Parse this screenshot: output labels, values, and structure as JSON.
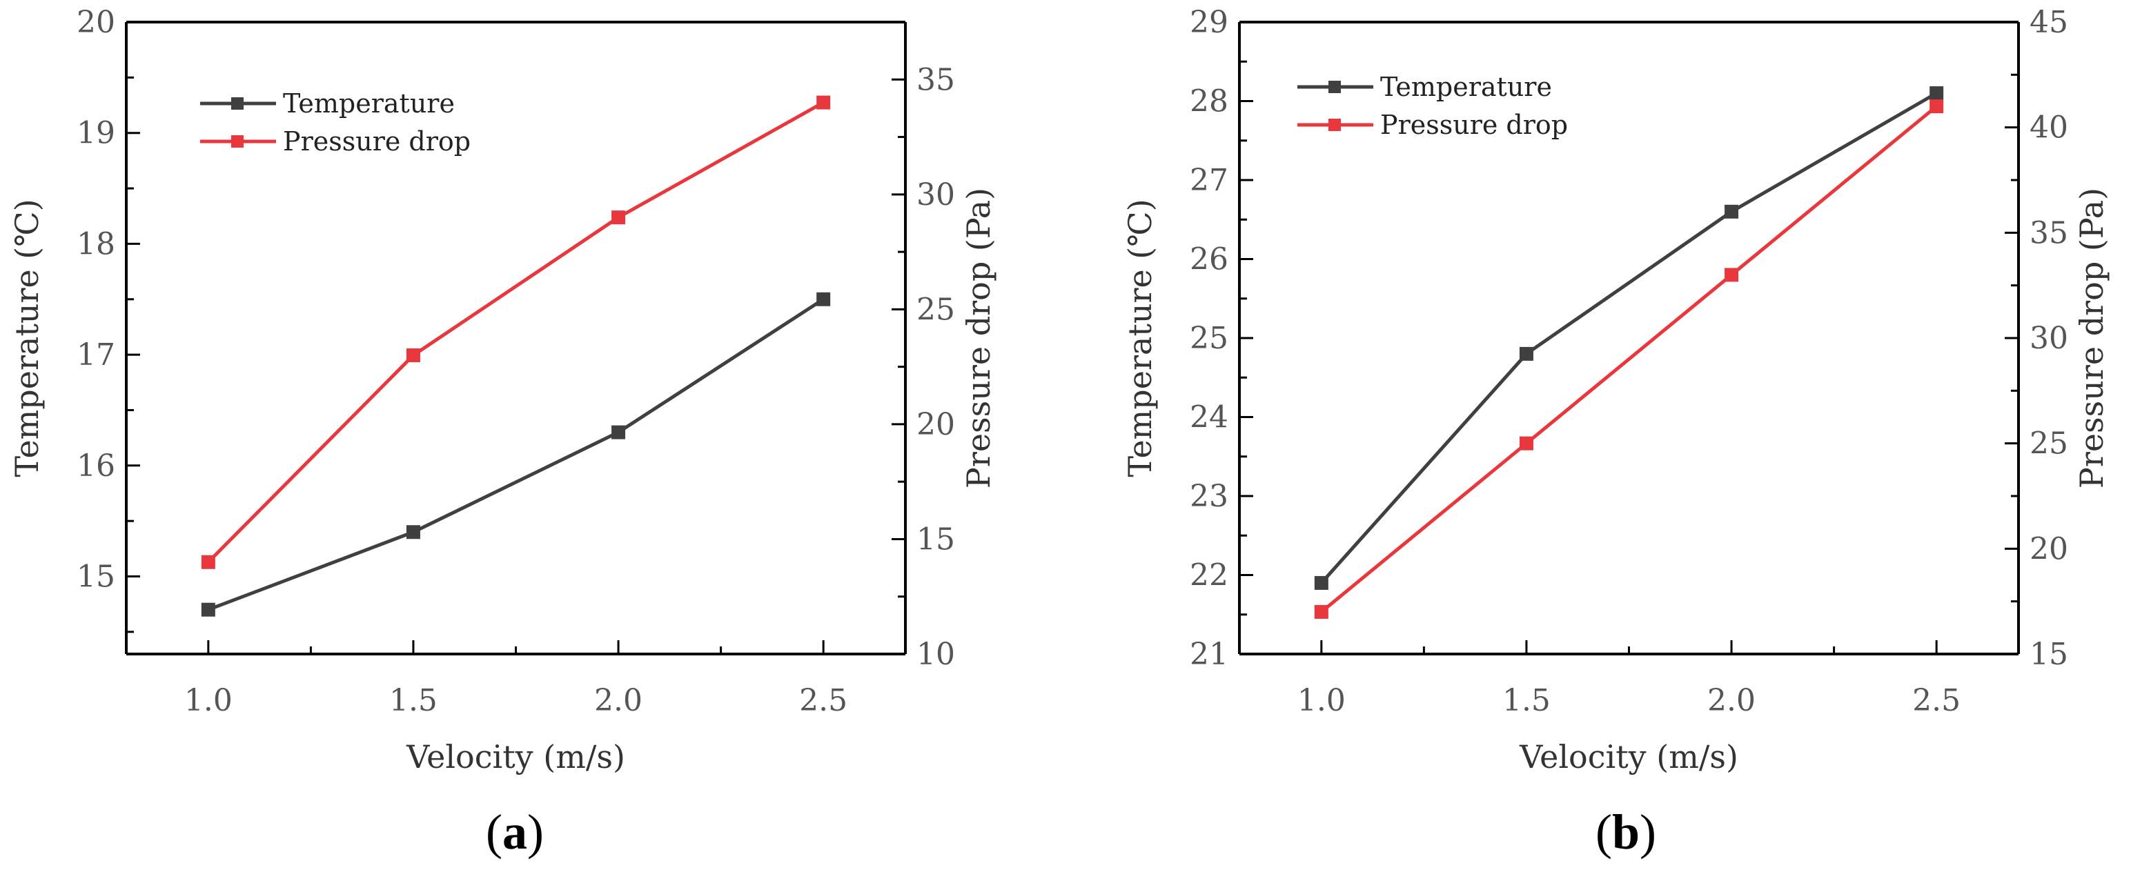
{
  "colors": {
    "temperature": "#404040",
    "pressure": "#e8383d"
  },
  "chart_data": [
    {
      "type": "line",
      "panel_label": "a",
      "xlabel": "Velocity (m/s)",
      "ylabel_left": "Temperature (℃)",
      "ylabel_right": "Pressure drop (Pa)",
      "x": [
        1.0,
        1.5,
        2.0,
        2.5
      ],
      "x_tick_labels": [
        "1.0",
        "1.5",
        "2.0",
        "2.5"
      ],
      "xlim": [
        0.8,
        2.7
      ],
      "ylim_left": [
        14.3,
        20
      ],
      "ylim_right": [
        10,
        37.5
      ],
      "y_left_ticks": [
        "15",
        "16",
        "17",
        "18",
        "19",
        "20"
      ],
      "y_right_ticks": [
        "10",
        "15",
        "20",
        "25",
        "30",
        "35"
      ],
      "legend_position": "top-left",
      "series": [
        {
          "name": "Temperature",
          "axis": "left",
          "values": [
            14.7,
            15.4,
            16.3,
            17.5
          ]
        },
        {
          "name": "Pressure drop",
          "axis": "right",
          "values": [
            14.0,
            23.0,
            29.0,
            34.0
          ]
        }
      ]
    },
    {
      "type": "line",
      "panel_label": "b",
      "xlabel": "Velocity (m/s)",
      "ylabel_left": "Temperature (℃)",
      "ylabel_right": "Pressure drop (Pa)",
      "x": [
        1.0,
        1.5,
        2.0,
        2.5
      ],
      "x_tick_labels": [
        "1.0",
        "1.5",
        "2.0",
        "2.5"
      ],
      "xlim": [
        0.8,
        2.7
      ],
      "ylim_left": [
        21,
        29
      ],
      "ylim_right": [
        15,
        45
      ],
      "y_left_ticks": [
        "21",
        "22",
        "23",
        "24",
        "25",
        "26",
        "27",
        "28",
        "29"
      ],
      "y_right_ticks": [
        "15",
        "20",
        "25",
        "30",
        "35",
        "40",
        "45"
      ],
      "legend_position": "top-left",
      "series": [
        {
          "name": "Temperature",
          "axis": "left",
          "values": [
            21.9,
            24.8,
            26.6,
            28.1
          ]
        },
        {
          "name": "Pressure drop",
          "axis": "right",
          "values": [
            17.0,
            25.0,
            33.0,
            41.0
          ]
        }
      ]
    }
  ]
}
